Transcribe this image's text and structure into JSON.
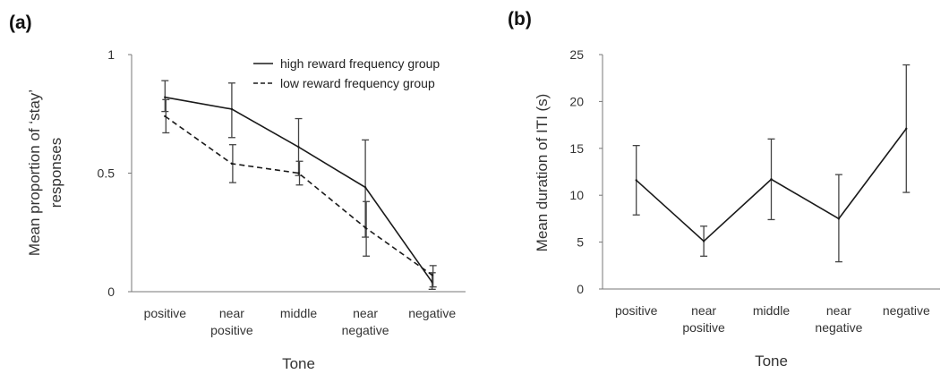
{
  "chart_data": [
    {
      "type": "line",
      "panel_label": "(a)",
      "categories": [
        [
          "positive"
        ],
        [
          "near",
          "positive"
        ],
        [
          "middle"
        ],
        [
          "near",
          "negative"
        ],
        [
          "negative"
        ]
      ],
      "xlabel": "Tone",
      "ylabel": [
        "Mean proportion of ‘stay’",
        "responses"
      ],
      "ylim": [
        0,
        1
      ],
      "yticks": [
        0,
        0.5,
        1
      ],
      "ytick_labels": [
        "0",
        "0.5",
        "1"
      ],
      "legend_position": "top-right",
      "grid": false,
      "series": [
        {
          "name": "high reward frequency group",
          "line_style": "solid",
          "values": [
            0.82,
            0.77,
            0.61,
            0.44,
            0.04
          ],
          "error_low": [
            0.76,
            0.65,
            0.49,
            0.23,
            0.01
          ],
          "error_high": [
            0.89,
            0.88,
            0.73,
            0.64,
            0.08
          ]
        },
        {
          "name": "low reward frequency group",
          "line_style": "dashed",
          "values": [
            0.74,
            0.54,
            0.5,
            0.27,
            0.07
          ],
          "error_low": [
            0.67,
            0.46,
            0.45,
            0.15,
            0.02
          ],
          "error_high": [
            0.81,
            0.62,
            0.55,
            0.38,
            0.11
          ]
        }
      ]
    },
    {
      "type": "line",
      "panel_label": "(b)",
      "categories": [
        [
          "positive"
        ],
        [
          "near",
          "positive"
        ],
        [
          "middle"
        ],
        [
          "near",
          "negative"
        ],
        [
          "negative"
        ]
      ],
      "xlabel": "Tone",
      "ylabel": [
        "Mean duration of ITI (s)"
      ],
      "ylim": [
        0,
        25
      ],
      "yticks": [
        0,
        5,
        10,
        15,
        20,
        25
      ],
      "ytick_labels": [
        "0",
        "5",
        "10",
        "15",
        "20",
        "25"
      ],
      "grid": false,
      "series": [
        {
          "line_style": "solid",
          "values": [
            11.6,
            5.1,
            11.7,
            7.5,
            17.1
          ],
          "error_low": [
            7.9,
            3.5,
            7.4,
            2.9,
            10.3
          ],
          "error_high": [
            15.3,
            6.7,
            16.0,
            12.2,
            23.9
          ]
        }
      ]
    }
  ],
  "colors": {
    "line": "#1a1a1a",
    "error_bar": "#444444",
    "axis": "#777777",
    "background": "#ffffff"
  }
}
